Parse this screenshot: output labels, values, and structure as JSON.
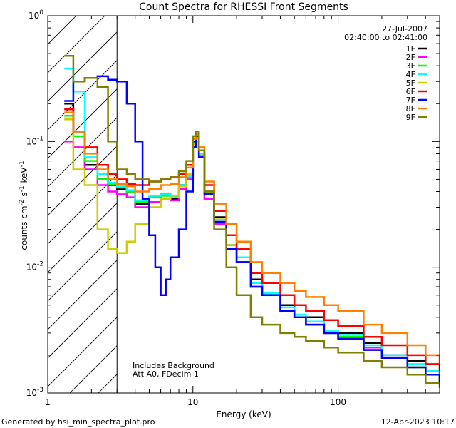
{
  "chart_data": {
    "type": "line",
    "title": "Count Spectra for RHESSI Front Segments",
    "xlabel": "Energy (keV)",
    "ylabel_main": "counts cm",
    "ylabel_exp1": "-2",
    "ylabel_mid": " s",
    "ylabel_exp2": "-1",
    "ylabel_tail": " keV",
    "ylabel_exp3": "-1",
    "x_scale": "log",
    "y_scale": "log",
    "xlim": [
      1,
      500
    ],
    "ylim": [
      0.001,
      1
    ],
    "x_ticks": [
      {
        "value": 1,
        "label": "1"
      },
      {
        "value": 10,
        "label": "10"
      },
      {
        "value": 100,
        "label": "100"
      }
    ],
    "y_ticks": [
      {
        "value": 1,
        "base": "10",
        "exp": "0"
      },
      {
        "value": 0.1,
        "base": "10",
        "exp": "-1"
      },
      {
        "value": 0.01,
        "base": "10",
        "exp": "-2"
      },
      {
        "value": 0.001,
        "base": "10",
        "exp": "-3"
      }
    ],
    "shaded_region": {
      "x0": 1,
      "x1": 3,
      "style": "hatched"
    },
    "legend": {
      "position": "top-right",
      "date": "27-Jul-2007",
      "time_range": "02:40:00 to 02:41:00"
    },
    "annotations": [
      "Includes Background",
      "Att A0, FDecim 1"
    ],
    "series": [
      {
        "name": "1F",
        "color": "#000000",
        "points": [
          [
            1.3,
            0.2
          ],
          [
            1.5,
            0.12
          ],
          [
            1.8,
            0.065
          ],
          [
            2.2,
            0.05
          ],
          [
            2.6,
            0.045
          ],
          [
            3.0,
            0.042
          ],
          [
            3.5,
            0.04
          ],
          [
            4.0,
            0.032
          ],
          [
            5.0,
            0.036
          ],
          [
            6.0,
            0.038
          ],
          [
            7.0,
            0.035
          ],
          [
            8.0,
            0.045
          ],
          [
            9.0,
            0.055
          ],
          [
            10.0,
            0.1
          ],
          [
            10.5,
            0.11
          ],
          [
            11.0,
            0.08
          ],
          [
            12.0,
            0.04
          ],
          [
            14.0,
            0.025
          ],
          [
            17.0,
            0.015
          ],
          [
            20.0,
            0.012
          ],
          [
            25.0,
            0.008
          ],
          [
            30.0,
            0.006
          ],
          [
            40.0,
            0.005
          ],
          [
            50.0,
            0.004
          ],
          [
            60.0,
            0.004
          ],
          [
            80.0,
            0.003
          ],
          [
            100.0,
            0.003
          ],
          [
            150.0,
            0.0025
          ],
          [
            200.0,
            0.002
          ],
          [
            300.0,
            0.0018
          ],
          [
            400.0,
            0.0015
          ],
          [
            500.0,
            0.0013
          ]
        ]
      },
      {
        "name": "2F",
        "color": "#ff00ff",
        "points": [
          [
            1.3,
            0.1
          ],
          [
            1.5,
            0.09
          ],
          [
            1.8,
            0.06
          ],
          [
            2.2,
            0.045
          ],
          [
            2.6,
            0.04
          ],
          [
            3.0,
            0.038
          ],
          [
            3.5,
            0.036
          ],
          [
            4.0,
            0.03
          ],
          [
            5.0,
            0.033
          ],
          [
            6.0,
            0.035
          ],
          [
            7.0,
            0.034
          ],
          [
            8.0,
            0.042
          ],
          [
            9.0,
            0.05
          ],
          [
            10.0,
            0.09
          ],
          [
            10.5,
            0.1
          ],
          [
            11.0,
            0.075
          ],
          [
            12.0,
            0.035
          ],
          [
            14.0,
            0.022
          ],
          [
            17.0,
            0.014
          ],
          [
            20.0,
            0.011
          ],
          [
            25.0,
            0.007
          ],
          [
            30.0,
            0.006
          ],
          [
            40.0,
            0.0045
          ],
          [
            50.0,
            0.004
          ],
          [
            60.0,
            0.0035
          ],
          [
            80.0,
            0.003
          ],
          [
            100.0,
            0.0028
          ],
          [
            150.0,
            0.0023
          ],
          [
            200.0,
            0.002
          ],
          [
            300.0,
            0.0016
          ],
          [
            400.0,
            0.0014
          ],
          [
            500.0,
            0.0012
          ]
        ]
      },
      {
        "name": "3F",
        "color": "#00ff00",
        "points": [
          [
            1.3,
            0.16
          ],
          [
            1.5,
            0.11
          ],
          [
            1.8,
            0.07
          ],
          [
            2.2,
            0.05
          ],
          [
            2.6,
            0.046
          ],
          [
            3.0,
            0.043
          ],
          [
            3.5,
            0.04
          ],
          [
            4.0,
            0.033
          ],
          [
            5.0,
            0.036
          ],
          [
            6.0,
            0.037
          ],
          [
            7.0,
            0.036
          ],
          [
            8.0,
            0.044
          ],
          [
            9.0,
            0.052
          ],
          [
            10.0,
            0.095
          ],
          [
            10.5,
            0.1
          ],
          [
            11.0,
            0.078
          ],
          [
            12.0,
            0.038
          ],
          [
            14.0,
            0.023
          ],
          [
            17.0,
            0.014
          ],
          [
            20.0,
            0.011
          ],
          [
            25.0,
            0.007
          ],
          [
            30.0,
            0.006
          ],
          [
            40.0,
            0.0045
          ],
          [
            50.0,
            0.004
          ],
          [
            60.0,
            0.0035
          ],
          [
            80.0,
            0.003
          ],
          [
            100.0,
            0.0028
          ],
          [
            150.0,
            0.0022
          ],
          [
            200.0,
            0.0019
          ],
          [
            300.0,
            0.0016
          ],
          [
            400.0,
            0.0014
          ],
          [
            500.0,
            0.0012
          ]
        ]
      },
      {
        "name": "4F",
        "color": "#00ffff",
        "points": [
          [
            1.3,
            0.38
          ],
          [
            1.5,
            0.25
          ],
          [
            1.8,
            0.075
          ],
          [
            2.2,
            0.055
          ],
          [
            2.6,
            0.047
          ],
          [
            3.0,
            0.044
          ],
          [
            3.5,
            0.041
          ],
          [
            4.0,
            0.034
          ],
          [
            5.0,
            0.037
          ],
          [
            6.0,
            0.038
          ],
          [
            7.0,
            0.037
          ],
          [
            8.0,
            0.045
          ],
          [
            9.0,
            0.053
          ],
          [
            10.0,
            0.097
          ],
          [
            10.5,
            0.105
          ],
          [
            11.0,
            0.079
          ],
          [
            12.0,
            0.039
          ],
          [
            14.0,
            0.024
          ],
          [
            17.0,
            0.015
          ],
          [
            20.0,
            0.012
          ],
          [
            25.0,
            0.0075
          ],
          [
            30.0,
            0.0062
          ],
          [
            40.0,
            0.0048
          ],
          [
            50.0,
            0.0042
          ],
          [
            60.0,
            0.0037
          ],
          [
            80.0,
            0.0031
          ],
          [
            100.0,
            0.0029
          ],
          [
            150.0,
            0.0024
          ],
          [
            200.0,
            0.002
          ],
          [
            300.0,
            0.0017
          ],
          [
            400.0,
            0.0015
          ],
          [
            500.0,
            0.0013
          ]
        ]
      },
      {
        "name": "5F",
        "color": "#cccc00",
        "points": [
          [
            1.3,
            0.15
          ],
          [
            1.5,
            0.06
          ],
          [
            1.8,
            0.045
          ],
          [
            2.2,
            0.02
          ],
          [
            2.6,
            0.014
          ],
          [
            3.0,
            0.013
          ],
          [
            3.5,
            0.016
          ],
          [
            4.0,
            0.022
          ],
          [
            5.0,
            0.03
          ],
          [
            6.0,
            0.035
          ],
          [
            7.0,
            0.036
          ],
          [
            8.0,
            0.044
          ],
          [
            9.0,
            0.055
          ],
          [
            10.0,
            0.095
          ],
          [
            10.5,
            0.1
          ],
          [
            11.0,
            0.08
          ],
          [
            12.0,
            0.04
          ],
          [
            14.0,
            0.024
          ],
          [
            17.0,
            0.015
          ],
          [
            20.0,
            0.011
          ],
          [
            25.0,
            0.007
          ],
          [
            30.0,
            0.006
          ],
          [
            40.0,
            0.0045
          ],
          [
            50.0,
            0.004
          ],
          [
            60.0,
            0.0035
          ],
          [
            80.0,
            0.003
          ],
          [
            100.0,
            0.0027
          ],
          [
            150.0,
            0.0022
          ],
          [
            200.0,
            0.0019
          ],
          [
            300.0,
            0.0016
          ],
          [
            400.0,
            0.0014
          ],
          [
            500.0,
            0.0012
          ]
        ]
      },
      {
        "name": "6F",
        "color": "#ff0000",
        "points": [
          [
            1.3,
            0.18
          ],
          [
            1.5,
            0.12
          ],
          [
            1.8,
            0.09
          ],
          [
            2.2,
            0.065
          ],
          [
            2.6,
            0.055
          ],
          [
            3.0,
            0.05
          ],
          [
            3.5,
            0.046
          ],
          [
            4.0,
            0.045
          ],
          [
            5.0,
            0.048
          ],
          [
            6.0,
            0.05
          ],
          [
            7.0,
            0.052
          ],
          [
            8.0,
            0.055
          ],
          [
            9.0,
            0.065
          ],
          [
            10.0,
            0.11
          ],
          [
            10.5,
            0.115
          ],
          [
            11.0,
            0.085
          ],
          [
            12.0,
            0.045
          ],
          [
            14.0,
            0.028
          ],
          [
            17.0,
            0.018
          ],
          [
            20.0,
            0.014
          ],
          [
            25.0,
            0.009
          ],
          [
            30.0,
            0.0075
          ],
          [
            40.0,
            0.006
          ],
          [
            50.0,
            0.005
          ],
          [
            60.0,
            0.0045
          ],
          [
            80.0,
            0.0038
          ],
          [
            100.0,
            0.0034
          ],
          [
            150.0,
            0.0028
          ],
          [
            200.0,
            0.0024
          ],
          [
            300.0,
            0.002
          ],
          [
            400.0,
            0.0017
          ],
          [
            500.0,
            0.0015
          ]
        ]
      },
      {
        "name": "7F",
        "color": "#0000ff",
        "points": [
          [
            1.3,
            0.21
          ],
          [
            1.5,
            0.3
          ],
          [
            1.8,
            0.32
          ],
          [
            2.2,
            0.33
          ],
          [
            2.6,
            0.31
          ],
          [
            3.0,
            0.3
          ],
          [
            3.5,
            0.2
          ],
          [
            4.0,
            0.1
          ],
          [
            4.5,
            0.035
          ],
          [
            5.0,
            0.018
          ],
          [
            5.5,
            0.01
          ],
          [
            6.0,
            0.006
          ],
          [
            6.5,
            0.008
          ],
          [
            7.0,
            0.012
          ],
          [
            8.0,
            0.02
          ],
          [
            9.0,
            0.04
          ],
          [
            10.0,
            0.09
          ],
          [
            10.5,
            0.11
          ],
          [
            11.0,
            0.075
          ],
          [
            12.0,
            0.038
          ],
          [
            14.0,
            0.023
          ],
          [
            17.0,
            0.014
          ],
          [
            20.0,
            0.011
          ],
          [
            25.0,
            0.007
          ],
          [
            30.0,
            0.006
          ],
          [
            40.0,
            0.0045
          ],
          [
            50.0,
            0.004
          ],
          [
            60.0,
            0.0035
          ],
          [
            80.0,
            0.003
          ],
          [
            100.0,
            0.0027
          ],
          [
            150.0,
            0.0022
          ],
          [
            200.0,
            0.0019
          ],
          [
            300.0,
            0.0016
          ],
          [
            400.0,
            0.0014
          ],
          [
            500.0,
            0.0012
          ]
        ]
      },
      {
        "name": "8F",
        "color": "#ff8000",
        "points": [
          [
            1.3,
            0.17
          ],
          [
            1.5,
            0.12
          ],
          [
            1.8,
            0.08
          ],
          [
            2.2,
            0.06
          ],
          [
            2.6,
            0.05
          ],
          [
            3.0,
            0.046
          ],
          [
            3.5,
            0.044
          ],
          [
            4.0,
            0.04
          ],
          [
            5.0,
            0.042
          ],
          [
            6.0,
            0.045
          ],
          [
            7.0,
            0.046
          ],
          [
            8.0,
            0.052
          ],
          [
            9.0,
            0.062
          ],
          [
            10.0,
            0.105
          ],
          [
            10.5,
            0.115
          ],
          [
            11.0,
            0.09
          ],
          [
            12.0,
            0.048
          ],
          [
            14.0,
            0.032
          ],
          [
            17.0,
            0.022
          ],
          [
            20.0,
            0.016
          ],
          [
            25.0,
            0.011
          ],
          [
            30.0,
            0.009
          ],
          [
            40.0,
            0.0075
          ],
          [
            50.0,
            0.0065
          ],
          [
            60.0,
            0.0058
          ],
          [
            80.0,
            0.005
          ],
          [
            100.0,
            0.0045
          ],
          [
            150.0,
            0.0035
          ],
          [
            200.0,
            0.003
          ],
          [
            300.0,
            0.0024
          ],
          [
            400.0,
            0.002
          ],
          [
            500.0,
            0.0017
          ]
        ]
      },
      {
        "name": "9F",
        "color": "#808000",
        "points": [
          [
            1.3,
            0.48
          ],
          [
            1.5,
            0.3
          ],
          [
            1.8,
            0.32
          ],
          [
            2.2,
            0.27
          ],
          [
            2.6,
            0.1
          ],
          [
            3.0,
            0.06
          ],
          [
            3.5,
            0.055
          ],
          [
            4.0,
            0.05
          ],
          [
            5.0,
            0.048
          ],
          [
            6.0,
            0.05
          ],
          [
            7.0,
            0.052
          ],
          [
            8.0,
            0.058
          ],
          [
            9.0,
            0.07
          ],
          [
            10.0,
            0.11
          ],
          [
            10.5,
            0.12
          ],
          [
            11.0,
            0.085
          ],
          [
            12.0,
            0.04
          ],
          [
            14.0,
            0.02
          ],
          [
            17.0,
            0.01
          ],
          [
            20.0,
            0.006
          ],
          [
            25.0,
            0.004
          ],
          [
            30.0,
            0.0035
          ],
          [
            40.0,
            0.003
          ],
          [
            50.0,
            0.0028
          ],
          [
            60.0,
            0.0026
          ],
          [
            80.0,
            0.0023
          ],
          [
            100.0,
            0.0021
          ],
          [
            150.0,
            0.0018
          ],
          [
            200.0,
            0.0016
          ],
          [
            300.0,
            0.0014
          ],
          [
            400.0,
            0.0012
          ],
          [
            500.0,
            0.0011
          ]
        ]
      }
    ]
  },
  "footer": {
    "left": "Generated by hsi_min_spectra_plot.pro",
    "right": "12-Apr-2023 10:17"
  }
}
